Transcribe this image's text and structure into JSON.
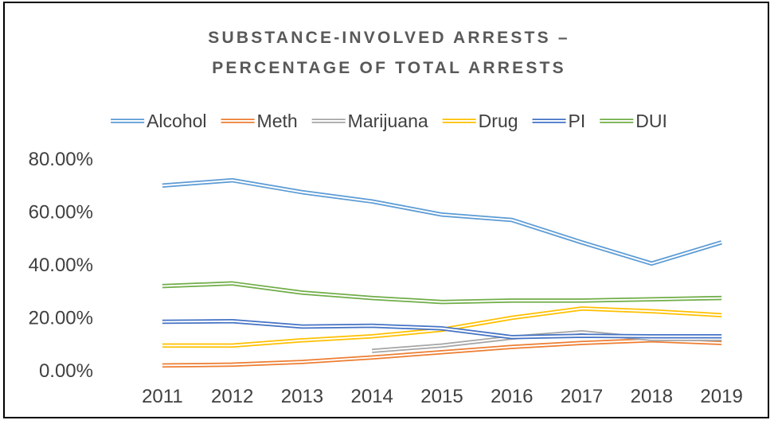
{
  "chart_data": {
    "type": "line",
    "title_line1": "SUBSTANCE-INVOLVED ARRESTS –",
    "title_line2": "PERCENTAGE OF TOTAL ARRESTS",
    "categories": [
      "2011",
      "2012",
      "2013",
      "2014",
      "2015",
      "2016",
      "2017",
      "2018",
      "2019"
    ],
    "y_tick_labels": [
      "0.00%",
      "20.00%",
      "40.00%",
      "60.00%",
      "80.00%"
    ],
    "ylim": [
      0,
      80
    ],
    "grid": false,
    "legend_position": "top",
    "series": [
      {
        "name": "Alcohol",
        "color": "#5b9bd5",
        "values": [
          70,
          72,
          67.5,
          64,
          59,
          57,
          48.5,
          40.5,
          48.5
        ]
      },
      {
        "name": "Meth",
        "color": "#ed7d31",
        "values": [
          2,
          2.3,
          3.3,
          5,
          7,
          9,
          10.5,
          11.5,
          10.5
        ]
      },
      {
        "name": "Marijuana",
        "color": "#a5a5a5",
        "values": [
          null,
          null,
          null,
          7.5,
          9.5,
          12.5,
          14.5,
          12,
          12
        ]
      },
      {
        "name": "Drug",
        "color": "#ffc000",
        "values": [
          9.5,
          9.5,
          11.5,
          13,
          15.5,
          20,
          23.5,
          22.5,
          21
        ]
      },
      {
        "name": "PI",
        "color": "#4472c4",
        "values": [
          18.5,
          18.7,
          16.7,
          17,
          16,
          12.7,
          13.2,
          13,
          13
        ]
      },
      {
        "name": "DUI",
        "color": "#70ad47",
        "values": [
          32,
          33,
          29.5,
          27.5,
          26,
          26.5,
          26.5,
          27,
          27.5
        ]
      }
    ]
  }
}
